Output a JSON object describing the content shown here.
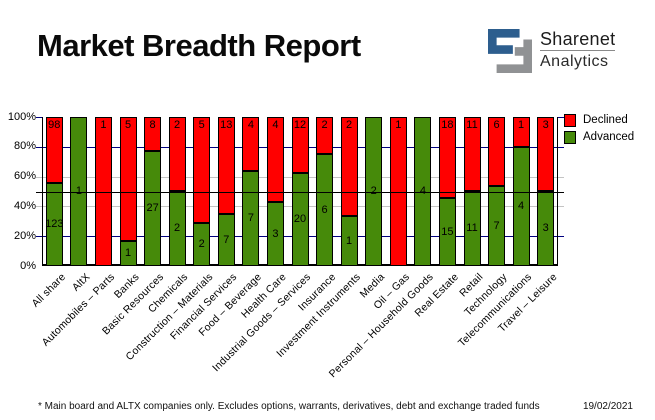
{
  "header": {
    "title": "Market Breadth Report",
    "logo_line1": "Sharenet",
    "logo_line2": "Analytics"
  },
  "legend": {
    "declined": "Declined",
    "advanced": "Advanced"
  },
  "colors": {
    "declined": "#ff0000",
    "advanced": "#468a0a",
    "grid_major": "#000080",
    "grid_minor": "#c4c4c4",
    "reference_line": "#000000",
    "logo_blue": "#2d5e8e",
    "logo_gray": "#909294"
  },
  "chart_data": {
    "type": "bar",
    "subtype": "stacked-100-percent",
    "title": "Market Breadth Report",
    "categories": [
      "All share",
      "AltX",
      "Automobiles – Parts",
      "Banks",
      "Basic Resources",
      "Chemicals",
      "Construction – Materials",
      "Financial Services",
      "Food – Beverage",
      "Health Care",
      "Industrial Goods – Services",
      "Insurance",
      "Investment Instruments",
      "Media",
      "Oil – Gas",
      "Personal – Household Goods",
      "Real Estate",
      "Retail",
      "Technology",
      "Telecommunications",
      "Travel – Leisure"
    ],
    "series": [
      {
        "name": "Declined",
        "color": "#ff0000",
        "values": [
          98,
          0,
          1,
          5,
          8,
          2,
          5,
          13,
          4,
          4,
          12,
          2,
          2,
          0,
          1,
          0,
          18,
          11,
          6,
          1,
          3
        ]
      },
      {
        "name": "Advanced",
        "color": "#468a0a",
        "values": [
          123,
          1,
          0,
          1,
          27,
          2,
          2,
          7,
          7,
          3,
          20,
          6,
          1,
          2,
          0,
          4,
          15,
          11,
          7,
          4,
          3
        ]
      }
    ],
    "y_axis": {
      "min": 0,
      "max": 100,
      "step": 20,
      "tick_labels": [
        "0%",
        "20%",
        "40%",
        "60%",
        "80%",
        "100%"
      ],
      "format": "percent"
    },
    "gridlines": {
      "navy_at": [
        20,
        80,
        100
      ],
      "gray_at": [
        40,
        60
      ]
    },
    "reference_line_pct": 50,
    "legend_position": "top-right",
    "legend_entries": [
      "Declined",
      "Advanced"
    ]
  },
  "footer": {
    "note": "* Main board and ALTX companies only. Excludes options, warrants, derivatives, debt and exchange traded funds",
    "date": "19/02/2021"
  }
}
